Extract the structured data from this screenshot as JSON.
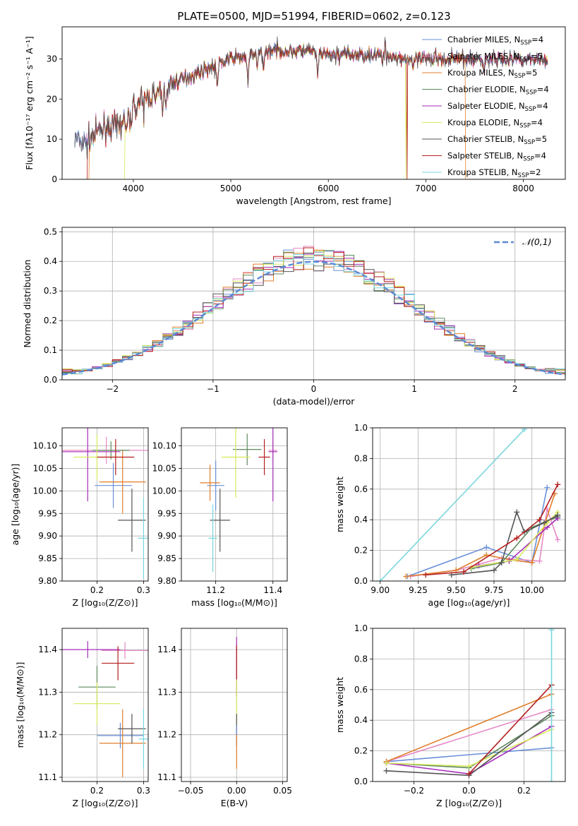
{
  "colors": {
    "chabrier_miles": "#6a8fd8",
    "salpeter_miles": "#e58ac6",
    "kroupa_miles": "#e07e2a",
    "chabrier_elodie": "#5e8a5e",
    "salpeter_elodie": "#a42eb8",
    "kroupa_elodie": "#d8e85a",
    "chabrier_stelib": "#555555",
    "salpeter_stelib": "#b51f1f",
    "kroupa_stelib": "#7ad6dc",
    "normal_curve": "#5a8ad6",
    "grid": "#b0b0b0"
  },
  "chart_data": [
    {
      "id": "spectrum",
      "type": "line",
      "title": "PLATE=0500, MJD=51994, FIBERID=0602, z=0.123",
      "xlabel": "wavelength [Angstrom, rest frame]",
      "ylabel": "Flux [fλ10⁻¹⁷ erg cm⁻² s⁻¹ A⁻¹]",
      "xlim": [
        3270,
        8430
      ],
      "ylim": [
        0,
        38
      ],
      "xticks": [
        4000,
        5000,
        6000,
        7000,
        8000
      ],
      "yticks": [
        0,
        10,
        20,
        30
      ],
      "grid": false,
      "legend_position": "right",
      "series": [
        {
          "name": "Chabrier MILES, N_SSP=4",
          "legend": "Chabrier MILES, N",
          "sub": "SSP",
          "suffix": "=4",
          "color_key": "chabrier_miles"
        },
        {
          "name": "Salpeter MILES, N_SSP=5",
          "legend": "Salpeter MILES, N",
          "sub": "SSP",
          "suffix": "=5",
          "color_key": "salpeter_miles"
        },
        {
          "name": "Kroupa MILES, N_SSP=5",
          "legend": "Kroupa MILES, N",
          "sub": "SSP",
          "suffix": "=5",
          "color_key": "kroupa_miles"
        },
        {
          "name": "Chabrier ELODIE, N_SSP=4",
          "legend": "Chabrier ELODIE, N",
          "sub": "SSP",
          "suffix": "=4",
          "color_key": "chabrier_elodie"
        },
        {
          "name": "Salpeter ELODIE, N_SSP=4",
          "legend": "Salpeter ELODIE, N",
          "sub": "SSP",
          "suffix": "=4",
          "color_key": "salpeter_elodie"
        },
        {
          "name": "Kroupa ELODIE, N_SSP=4",
          "legend": "Kroupa ELODIE, N",
          "sub": "SSP",
          "suffix": "=4",
          "color_key": "kroupa_elodie"
        },
        {
          "name": "Chabrier STELIB, N_SSP=5",
          "legend": "Chabrier STELIB, N",
          "sub": "SSP",
          "suffix": "=5",
          "color_key": "chabrier_stelib"
        },
        {
          "name": "Salpeter STELIB, N_SSP=4",
          "legend": "Salpeter STELIB, N",
          "sub": "SSP",
          "suffix": "=4",
          "color_key": "salpeter_stelib"
        },
        {
          "name": "Kroupa STELIB, N_SSP=2",
          "legend": "Kroupa STELIB, N",
          "sub": "SSP",
          "suffix": "=2",
          "color_key": "kroupa_stelib"
        }
      ],
      "continuum": [
        [
          3400,
          10
        ],
        [
          3500,
          9
        ],
        [
          3700,
          13
        ],
        [
          3850,
          13
        ],
        [
          4000,
          18
        ],
        [
          4100,
          20
        ],
        [
          4300,
          22
        ],
        [
          4400,
          24
        ],
        [
          4500,
          25
        ],
        [
          4700,
          27
        ],
        [
          4900,
          29
        ],
        [
          5000,
          30
        ],
        [
          5200,
          31
        ],
        [
          5400,
          32
        ],
        [
          5600,
          32
        ],
        [
          5800,
          32
        ],
        [
          6000,
          31
        ],
        [
          6200,
          31
        ],
        [
          6400,
          31
        ],
        [
          6600,
          31
        ],
        [
          6800,
          30
        ],
        [
          7000,
          30
        ],
        [
          7200,
          30
        ],
        [
          7400,
          30
        ],
        [
          7600,
          30
        ],
        [
          7800,
          30
        ],
        [
          8000,
          30
        ],
        [
          8200,
          30
        ]
      ],
      "absorption_lines": [
        [
          3934,
          -4
        ],
        [
          3969,
          -3
        ],
        [
          4102,
          -3
        ],
        [
          4226,
          -2
        ],
        [
          4304,
          -4
        ],
        [
          4340,
          -3
        ],
        [
          4861,
          -5
        ],
        [
          5175,
          -7
        ],
        [
          5270,
          -3
        ],
        [
          5335,
          -3
        ],
        [
          5890,
          -6
        ],
        [
          6563,
          -3
        ],
        [
          6867,
          -3
        ],
        [
          7594,
          -3
        ]
      ],
      "emission_lines": [
        [
          6563,
          3
        ],
        [
          6583,
          4
        ],
        [
          7100,
          3
        ]
      ],
      "cutoffs": [
        {
          "series": "kroupa_miles",
          "below": 3545
        },
        {
          "series": "salpeter_stelib",
          "below": 3530
        },
        {
          "series": "kroupa_elodie",
          "below": 3915
        },
        {
          "series": "kroupa_miles",
          "above": 7405
        },
        {
          "series": "kroupa_elodie",
          "gap": 6795
        },
        {
          "series": "salpeter_stelib",
          "gap": 6810
        }
      ]
    },
    {
      "id": "residuals",
      "type": "histogram",
      "xlabel": "(data-model)/error",
      "ylabel": "Normed distribution",
      "xlim": [
        -2.5,
        2.5
      ],
      "ylim": [
        0,
        0.515
      ],
      "xticks": [
        -2,
        -1,
        0,
        1,
        2
      ],
      "yticks": [
        0.0,
        0.1,
        0.2,
        0.3,
        0.4,
        0.5
      ],
      "grid": true,
      "legend_position": "top-right",
      "normal_label": "𝒩(0,1)",
      "bin_width": 0.1
    },
    {
      "id": "age_vs_Z",
      "type": "errorbar",
      "xlabel": "Z [log₁₀(Z/Z⊙)]",
      "ylabel": "age  [log₁₀(age/yr)]",
      "xlim": [
        0.125,
        0.31
      ],
      "ylim": [
        9.8,
        10.14
      ],
      "xticks": [
        0.2,
        0.3
      ],
      "yticks": [
        9.8,
        9.85,
        9.9,
        9.95,
        10.0,
        10.05,
        10.1
      ],
      "grid": true,
      "points": [
        {
          "c": "chabrier_miles",
          "x": 0.235,
          "xe": 0.04,
          "y": 10.012,
          "ye": 0.05
        },
        {
          "c": "salpeter_miles",
          "x": 0.22,
          "xe": 0.1,
          "y": 10.09,
          "ye": 0.03
        },
        {
          "c": "kroupa_miles",
          "x": 0.255,
          "xe": 0.05,
          "y": 10.02,
          "ye": 0.07
        },
        {
          "c": "chabrier_elodie",
          "x": 0.23,
          "xe": 0.04,
          "y": 10.09,
          "ye": 0.02
        },
        {
          "c": "salpeter_elodie",
          "x": 0.18,
          "xe": 0.07,
          "y": 10.087,
          "ye": 0.11
        },
        {
          "c": "kroupa_elodie",
          "x": 0.2,
          "xe": 0.05,
          "y": 10.075,
          "ye": 0.05
        },
        {
          "c": "chabrier_stelib",
          "x": 0.275,
          "xe": 0.03,
          "y": 9.935,
          "ye": 0.07
        },
        {
          "c": "salpeter_stelib",
          "x": 0.24,
          "xe": 0.04,
          "y": 10.075,
          "ye": 0.04
        },
        {
          "c": "kroupa_stelib",
          "x": 0.3,
          "xe": 0.012,
          "y": 9.895,
          "ye": 0.09
        }
      ]
    },
    {
      "id": "age_vs_mass",
      "type": "errorbar",
      "xlabel": "mass [log₁₀(M/M⊙)]",
      "xlim": [
        11.08,
        11.45
      ],
      "ylim": [
        9.8,
        10.14
      ],
      "xticks": [
        11.2,
        11.4
      ],
      "yticks": [
        9.8,
        9.85,
        9.9,
        9.95,
        10.0,
        10.05,
        10.1
      ],
      "grid": true,
      "points": [
        {
          "c": "chabrier_miles",
          "x": 11.2,
          "xe": 0.03,
          "y": 10.012,
          "ye": 0.055
        },
        {
          "c": "salpeter_miles",
          "x": 11.4,
          "xe": 0.015,
          "y": 10.09,
          "ye": 0.02
        },
        {
          "c": "kroupa_miles",
          "x": 11.18,
          "xe": 0.035,
          "y": 10.018,
          "ye": 0.04
        },
        {
          "c": "chabrier_elodie",
          "x": 11.31,
          "xe": 0.05,
          "y": 10.092,
          "ye": 0.035
        },
        {
          "c": "salpeter_elodie",
          "x": 11.4,
          "xe": 0.015,
          "y": 10.087,
          "ye": 0.11
        },
        {
          "c": "kroupa_elodie",
          "x": 11.27,
          "xe": 0.05,
          "y": 10.075,
          "ye": 0.09
        },
        {
          "c": "chabrier_stelib",
          "x": 11.215,
          "xe": 0.035,
          "y": 9.935,
          "ye": 0.07
        },
        {
          "c": "salpeter_stelib",
          "x": 11.37,
          "xe": 0.02,
          "y": 10.075,
          "ye": 0.04
        },
        {
          "c": "kroupa_stelib",
          "x": 11.19,
          "xe": 0.015,
          "y": 9.895,
          "ye": 0.075
        }
      ]
    },
    {
      "id": "massweight_vs_age",
      "type": "line",
      "xlabel": "age  [log₁₀(age/yr)]",
      "ylabel": "mass weight",
      "xlim": [
        8.95,
        10.22
      ],
      "ylim": [
        0,
        1.0
      ],
      "xticks": [
        9.0,
        9.25,
        9.5,
        9.75,
        10.0
      ],
      "yticks": [
        0.0,
        0.2,
        0.4,
        0.6,
        0.8,
        1.0
      ],
      "grid": true,
      "series": [
        {
          "c": "kroupa_stelib",
          "x": [
            9.0,
            9.95
          ],
          "y": [
            0.0,
            0.99
          ]
        },
        {
          "c": "chabrier_miles",
          "x": [
            9.18,
            9.7,
            10.0,
            10.1
          ],
          "y": [
            0.03,
            0.22,
            0.12,
            0.61
          ]
        },
        {
          "c": "salpeter_miles",
          "x": [
            9.2,
            9.5,
            9.8,
            10.05,
            10.1,
            10.17
          ],
          "y": [
            0.03,
            0.07,
            0.15,
            0.13,
            0.47,
            0.27
          ]
        },
        {
          "c": "kroupa_miles",
          "x": [
            9.17,
            9.5,
            9.7,
            9.85,
            10.0,
            10.15
          ],
          "y": [
            0.03,
            0.07,
            0.17,
            0.14,
            0.12,
            0.57
          ]
        },
        {
          "c": "chabrier_elodie",
          "x": [
            9.6,
            9.8,
            10.0,
            10.17
          ],
          "y": [
            0.08,
            0.12,
            0.35,
            0.42
          ]
        },
        {
          "c": "salpeter_elodie",
          "x": [
            9.65,
            9.85,
            10.1,
            10.17
          ],
          "y": [
            0.1,
            0.13,
            0.35,
            0.41
          ]
        },
        {
          "c": "kroupa_elodie",
          "x": [
            9.6,
            9.9,
            10.1,
            10.17
          ],
          "y": [
            0.09,
            0.14,
            0.38,
            0.45
          ]
        },
        {
          "c": "chabrier_stelib",
          "x": [
            9.47,
            9.75,
            9.8,
            9.9,
            9.95,
            10.08,
            10.17
          ],
          "y": [
            0.04,
            0.07,
            0.12,
            0.45,
            0.32,
            0.38,
            0.43
          ]
        },
        {
          "c": "salpeter_stelib",
          "x": [
            9.3,
            9.55,
            9.9,
            10.05,
            10.17
          ],
          "y": [
            0.04,
            0.06,
            0.28,
            0.4,
            0.63
          ]
        }
      ]
    },
    {
      "id": "mass_vs_Z",
      "type": "errorbar",
      "xlabel": "Z [log₁₀(Z/Z⊙)]",
      "ylabel": "mass [log₁₀(M/M⊙)]",
      "xlim": [
        0.125,
        0.31
      ],
      "ylim": [
        11.09,
        11.45
      ],
      "xticks": [
        0.2,
        0.3
      ],
      "yticks": [
        11.1,
        11.2,
        11.3,
        11.4
      ],
      "grid": true,
      "points": [
        {
          "c": "chabrier_miles",
          "x": 0.25,
          "xe": 0.05,
          "y": 11.198,
          "ye": 0.03
        },
        {
          "c": "salpeter_miles",
          "x": 0.26,
          "xe": 0.05,
          "y": 11.398,
          "ye": 0.02
        },
        {
          "c": "kroupa_miles",
          "x": 0.255,
          "xe": 0.05,
          "y": 11.18,
          "ye": 0.08
        },
        {
          "c": "chabrier_elodie",
          "x": 0.2,
          "xe": 0.04,
          "y": 11.312,
          "ye": 0.05
        },
        {
          "c": "salpeter_elodie",
          "x": 0.18,
          "xe": 0.07,
          "y": 11.4,
          "ye": 0.02
        },
        {
          "c": "kroupa_elodie",
          "x": 0.2,
          "xe": 0.05,
          "y": 11.273,
          "ye": 0.05
        },
        {
          "c": "chabrier_stelib",
          "x": 0.275,
          "xe": 0.03,
          "y": 11.214,
          "ye": 0.035
        },
        {
          "c": "salpeter_stelib",
          "x": 0.245,
          "xe": 0.035,
          "y": 11.368,
          "ye": 0.04
        },
        {
          "c": "kroupa_stelib",
          "x": 0.3,
          "xe": 0.01,
          "y": 11.19,
          "ye": 0.07
        }
      ]
    },
    {
      "id": "mass_vs_ebv",
      "type": "errorbar",
      "xlabel": "E(B-V)",
      "xlim": [
        -0.06,
        0.055
      ],
      "ylim": [
        11.09,
        11.45
      ],
      "xticks": [
        -0.05,
        0.0,
        0.05
      ],
      "xtick_labels": [
        "−0.05",
        "0.00",
        "0.05"
      ],
      "yticks": [
        11.1,
        11.2,
        11.3,
        11.4
      ],
      "grid": true,
      "points": [
        {
          "c": "salpeter_elodie",
          "x": 0.0,
          "xe": 0.0,
          "y": 11.36,
          "ye": 0.07
        },
        {
          "c": "salpeter_stelib",
          "x": 0.0,
          "xe": 0.0,
          "y": 11.37,
          "ye": 0.04
        },
        {
          "c": "kroupa_elodie",
          "x": 0.0,
          "xe": 0.0,
          "y": 11.27,
          "ye": 0.06
        },
        {
          "c": "chabrier_stelib",
          "x": 0.0,
          "xe": 0.0,
          "y": 11.214,
          "ye": 0.035
        },
        {
          "c": "chabrier_miles",
          "x": 0.0,
          "xe": 0.0,
          "y": 11.198,
          "ye": 0.025
        },
        {
          "c": "kroupa_miles",
          "x": 0.0,
          "xe": 0.0,
          "y": 11.16,
          "ye": 0.04
        }
      ]
    },
    {
      "id": "massweight_vs_Z",
      "type": "line",
      "xlabel": "Z [log₁₀(Z/Z⊙)]",
      "ylabel": "mass weight",
      "xlim": [
        -0.35,
        0.35
      ],
      "ylim": [
        0,
        1.0
      ],
      "xticks": [
        -0.2,
        0.0,
        0.2
      ],
      "xtick_labels": [
        "−0.2",
        "0.0",
        "0.2"
      ],
      "yticks": [
        0.0,
        0.2,
        0.4,
        0.6,
        0.8,
        1.0
      ],
      "grid": true,
      "series": [
        {
          "c": "chabrier_miles",
          "x": [
            -0.3,
            0.3
          ],
          "y": [
            0.13,
            0.22
          ]
        },
        {
          "c": "salpeter_miles",
          "x": [
            -0.3,
            0.3
          ],
          "y": [
            0.13,
            0.47
          ]
        },
        {
          "c": "kroupa_miles",
          "x": [
            -0.3,
            0.3
          ],
          "y": [
            0.13,
            0.57
          ]
        },
        {
          "c": "chabrier_elodie",
          "x": [
            -0.3,
            0.0,
            0.3
          ],
          "y": [
            0.12,
            0.09,
            0.43
          ]
        },
        {
          "c": "salpeter_elodie",
          "x": [
            -0.3,
            0.0,
            0.3
          ],
          "y": [
            0.12,
            0.05,
            0.36
          ]
        },
        {
          "c": "kroupa_elodie",
          "x": [
            -0.3,
            0.0,
            0.3
          ],
          "y": [
            0.12,
            0.1,
            0.34
          ]
        },
        {
          "c": "chabrier_stelib",
          "x": [
            -0.3,
            0.0,
            0.3
          ],
          "y": [
            0.07,
            0.04,
            0.45
          ]
        },
        {
          "c": "salpeter_stelib",
          "x": [
            0.0,
            0.3
          ],
          "y": [
            0.05,
            0.63
          ]
        },
        {
          "c": "kroupa_stelib",
          "x": [
            0.3,
            0.3
          ],
          "y": [
            0.0,
            0.99
          ]
        }
      ]
    }
  ]
}
